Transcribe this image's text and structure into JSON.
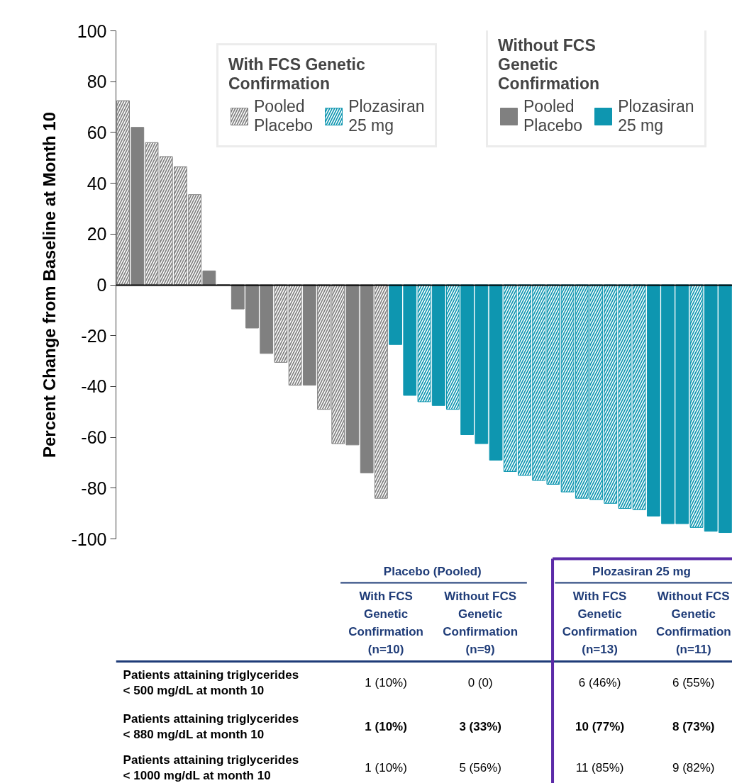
{
  "chart_data": {
    "type": "bar",
    "ylabel": "Percent Change from Baseline at Month 10",
    "categories": [
      null,
      null,
      null,
      null,
      null,
      null,
      null,
      null,
      null,
      null,
      null,
      null,
      null,
      null,
      null,
      null,
      null,
      null,
      null,
      null,
      null,
      null,
      null,
      null,
      null,
      null,
      null,
      null,
      null,
      null,
      null,
      null,
      null,
      null,
      null,
      null,
      null,
      null,
      null,
      null,
      null,
      null,
      null
    ],
    "series": [
      {
        "name": "Pooled Placebo",
        "color": "#808080",
        "values": [
          72.5,
          null,
          56,
          50.5,
          46.5,
          35.5,
          null,
          null,
          null,
          null,
          null,
          -30.5,
          -39.5,
          null,
          -49,
          -62.5,
          null,
          null,
          -84,
          null,
          null,
          null,
          null,
          null,
          null,
          null,
          null,
          null,
          null,
          null,
          null,
          null,
          null,
          null,
          null,
          null,
          null,
          null,
          null,
          null,
          null,
          null,
          null
        ]
      },
      {
        "name": "Plozasiran 25 mg",
        "color": "#0e96b0",
        "values": [
          null,
          null,
          null,
          null,
          null,
          null,
          null,
          null,
          null,
          null,
          null,
          null,
          null,
          null,
          null,
          null,
          null,
          null,
          null,
          null,
          null,
          -46,
          null,
          -49,
          null,
          null,
          null,
          -73.5,
          -75,
          -77,
          -78.5,
          -81.5,
          -84,
          -84.5,
          -86,
          -88,
          -88.5,
          null,
          null,
          null,
          -95.5,
          null,
          null
        ]
      },
      {
        "name": "Pooled Placebo",
        "color": "#808080",
        "values": [
          null,
          62,
          null,
          null,
          null,
          null,
          5.5,
          0,
          -9.5,
          -17,
          -27,
          null,
          null,
          -39.5,
          null,
          null,
          -63,
          -74,
          null,
          null,
          null,
          null,
          null,
          null,
          null,
          null,
          null,
          null,
          null,
          null,
          null,
          null,
          null,
          null,
          null,
          null,
          null,
          null,
          null,
          null,
          null,
          null,
          null
        ]
      },
      {
        "name": "Plozasiran 25 mg",
        "color": "#0e96b0",
        "values": [
          null,
          null,
          null,
          null,
          null,
          null,
          null,
          null,
          null,
          null,
          null,
          null,
          null,
          null,
          null,
          null,
          null,
          null,
          null,
          -23.5,
          -43.5,
          null,
          -47.5,
          null,
          -59,
          -62.5,
          -69,
          null,
          null,
          null,
          null,
          null,
          null,
          null,
          null,
          null,
          null,
          -91,
          -94,
          -94,
          null,
          -97,
          -97.5
        ]
      }
    ],
    "ylim": [
      -100,
      100
    ],
    "yticks": [
      -100,
      -80,
      -60,
      -40,
      -20,
      0,
      20,
      40,
      60,
      80,
      100
    ],
    "tick_labels": "y",
    "legend": "top right",
    "annotations": [
      "With FCS Genetic Confirmation",
      "Without FCS Genetic Confirmation",
      "Placebo (Pooled)",
      "Plozasiran 25 mg",
      "With FCS Genetic Confirmation (n=10)",
      "Without FCS Genetic Confirmation (n=9)",
      "With FCS Genetic Confirmation (n=13)",
      "Without FCS Genetic Confirmation (n=11)",
      "Patients attaining triglycerides < 500 mg/dL at month 10",
      "Patients attaining triglycerides < 880 mg/dL at month 10",
      "Patients attaining triglycerides < 1000 mg/dL at month 10",
      "1 (10%)",
      "0 (0)",
      "6 (46%)",
      "6 (55%)",
      "1 (10%)",
      "3 (33%)",
      "10 (77%)",
      "8 (73%)",
      "1 (10%)",
      "5 (56%)",
      "11 (85%)",
      "9 (82%)"
    ]
  }
}
